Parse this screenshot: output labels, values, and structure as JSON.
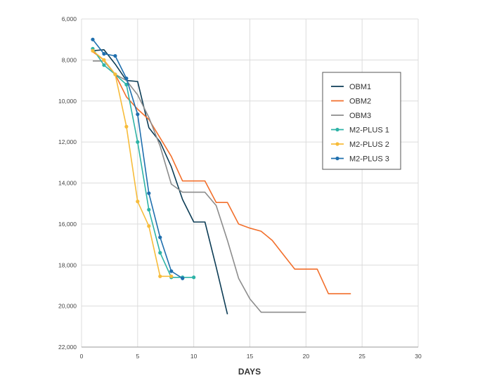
{
  "chart_data": {
    "type": "line",
    "title": "",
    "xlabel": "DAYS",
    "ylabel": "",
    "xlim": [
      0,
      30
    ],
    "ylim": [
      6000,
      22000
    ],
    "y_inverted": true,
    "grid": true,
    "legend_position": "right",
    "x_ticks": [
      "0",
      "5",
      "10",
      "15",
      "20",
      "25",
      "30"
    ],
    "y_ticks": [
      "6,000",
      "8,000",
      "10,000",
      "12,000",
      "14,000",
      "16,000",
      "18,000",
      "20,000",
      "22,000"
    ],
    "series": [
      {
        "name": "OBM1",
        "color": "#0d3d56",
        "markers": false,
        "points": [
          [
            1,
            7550
          ],
          [
            2,
            7500
          ],
          [
            3,
            8200
          ],
          [
            4,
            9000
          ],
          [
            5,
            9050
          ],
          [
            6,
            11300
          ],
          [
            7,
            12000
          ],
          [
            8,
            13200
          ],
          [
            9,
            14800
          ],
          [
            10,
            15900
          ],
          [
            11,
            15900
          ],
          [
            12,
            18100
          ],
          [
            13,
            20400
          ]
        ]
      },
      {
        "name": "OBM2",
        "color": "#f26f2b",
        "markers": false,
        "points": [
          [
            1,
            7600
          ],
          [
            2,
            8000
          ],
          [
            3,
            8700
          ],
          [
            4,
            9800
          ],
          [
            5,
            10400
          ],
          [
            6,
            10900
          ],
          [
            7,
            11800
          ],
          [
            8,
            12700
          ],
          [
            9,
            13900
          ],
          [
            10,
            13900
          ],
          [
            11,
            13900
          ],
          [
            12,
            14950
          ],
          [
            13,
            14950
          ],
          [
            14,
            16000
          ],
          [
            15,
            16200
          ],
          [
            16,
            16350
          ],
          [
            17,
            16800
          ],
          [
            18,
            17500
          ],
          [
            19,
            18200
          ],
          [
            20,
            18200
          ],
          [
            21,
            18200
          ],
          [
            22,
            19400
          ],
          [
            23,
            19400
          ],
          [
            24,
            19400
          ]
        ]
      },
      {
        "name": "OBM3",
        "color": "#8c8c8c",
        "markers": false,
        "points": [
          [
            1,
            8050
          ],
          [
            2,
            8050
          ],
          [
            3,
            8700
          ],
          [
            4,
            9000
          ],
          [
            5,
            9700
          ],
          [
            6,
            10800
          ],
          [
            7,
            12200
          ],
          [
            8,
            14050
          ],
          [
            9,
            14450
          ],
          [
            10,
            14450
          ],
          [
            11,
            14450
          ],
          [
            12,
            15100
          ],
          [
            13,
            16800
          ],
          [
            14,
            18650
          ],
          [
            15,
            19650
          ],
          [
            16,
            20300
          ],
          [
            17,
            20300
          ],
          [
            18,
            20300
          ],
          [
            19,
            20300
          ],
          [
            20,
            20300
          ]
        ]
      },
      {
        "name": "M2-PLUS 1",
        "color": "#2db3a6",
        "markers": true,
        "points": [
          [
            1,
            7450
          ],
          [
            2,
            8250
          ],
          [
            3,
            8700
          ],
          [
            4,
            9200
          ],
          [
            5,
            12000
          ],
          [
            6,
            15300
          ],
          [
            7,
            17400
          ],
          [
            8,
            18600
          ],
          [
            9,
            18600
          ],
          [
            10,
            18600
          ]
        ]
      },
      {
        "name": "M2-PLUS 2",
        "color": "#f7bc3b",
        "markers": true,
        "points": [
          [
            1,
            7550
          ],
          [
            2,
            8000
          ],
          [
            3,
            8700
          ],
          [
            4,
            11250
          ],
          [
            5,
            14900
          ],
          [
            6,
            16100
          ],
          [
            7,
            18550
          ],
          [
            8,
            18550
          ]
        ]
      },
      {
        "name": "M2-PLUS 3",
        "color": "#1f6fae",
        "markers": true,
        "points": [
          [
            1,
            7000
          ],
          [
            2,
            7700
          ],
          [
            3,
            7800
          ],
          [
            4,
            8900
          ],
          [
            5,
            10650
          ],
          [
            6,
            14500
          ],
          [
            7,
            16650
          ],
          [
            8,
            18300
          ],
          [
            9,
            18650
          ]
        ]
      }
    ]
  }
}
